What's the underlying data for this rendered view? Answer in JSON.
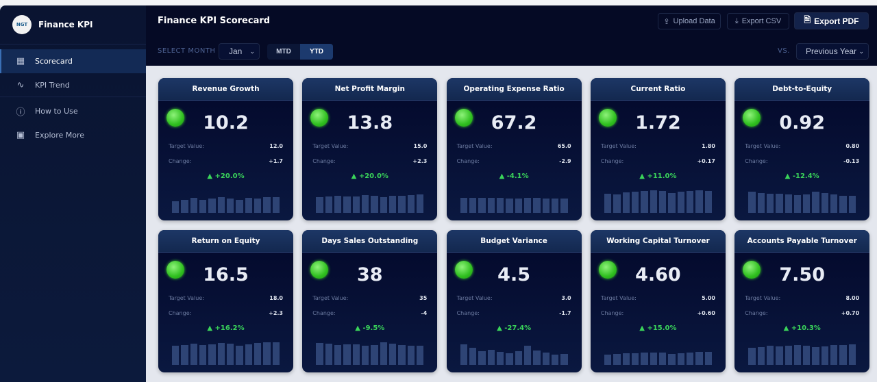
{
  "sidebar": {
    "brand": "Finance KPI",
    "logo_text": "NGT",
    "items": [
      {
        "label": "Scorecard",
        "icon": "grid-icon"
      },
      {
        "label": "KPI Trend",
        "icon": "pulse-icon"
      },
      {
        "label": "How to Use",
        "icon": "help-circle-icon"
      },
      {
        "label": "Explore More",
        "icon": "bag-icon"
      }
    ],
    "active": "Scorecard"
  },
  "header": {
    "title": "Finance KPI Scorecard",
    "upload": "Upload Data",
    "export_csv": "Export CSV",
    "export_pdf": "Export PDF",
    "select_month_label": "SELECT MONTH",
    "month": "Jan",
    "mtd": "MTD",
    "ytd": "YTD",
    "active_period": "YTD",
    "vs_label": "VS.",
    "comparison": "Previous Year"
  },
  "labels": {
    "target": "Target Value:",
    "change": "Change:"
  },
  "colors": {
    "status_good": "#3fd12a",
    "positive": "#3ad45a",
    "accent": "#1c3a6e"
  },
  "cards": [
    {
      "title": "Revenue Growth",
      "value": "10.2",
      "target": "12.0",
      "change": "+1.7",
      "pct": "▲ +20.0%",
      "spark": [
        17,
        19,
        22,
        19,
        21,
        23,
        21,
        19,
        22,
        21,
        23,
        23
      ]
    },
    {
      "title": "Net Profit Margin",
      "value": "13.8",
      "target": "15.0",
      "change": "+2.3",
      "pct": "▲ +20.0%",
      "spark": [
        23,
        24,
        25,
        24,
        24,
        26,
        25,
        23,
        25,
        25,
        26,
        27
      ]
    },
    {
      "title": "Operating Expense Ratio",
      "value": "67.2",
      "target": "65.0",
      "change": "-2.9",
      "pct": "▲ -4.1%",
      "spark": [
        22,
        22,
        22,
        22,
        22,
        21,
        21,
        22,
        22,
        21,
        21,
        21
      ]
    },
    {
      "title": "Current Ratio",
      "value": "1.72",
      "target": "1.80",
      "change": "+0.17",
      "pct": "▲ +11.0%",
      "spark": [
        28,
        27,
        30,
        31,
        32,
        33,
        32,
        29,
        31,
        32,
        33,
        32
      ]
    },
    {
      "title": "Debt-to-Equity",
      "value": "0.92",
      "target": "0.80",
      "change": "-0.13",
      "pct": "▲ -12.4%",
      "spark": [
        31,
        29,
        28,
        28,
        27,
        26,
        27,
        31,
        29,
        27,
        25,
        25
      ]
    },
    {
      "title": "Return on Equity",
      "value": "16.5",
      "target": "18.0",
      "change": "+2.3",
      "pct": "▲ +16.2%",
      "spark": [
        28,
        29,
        31,
        29,
        30,
        32,
        31,
        28,
        30,
        32,
        33,
        33
      ]
    },
    {
      "title": "Days Sales Outstanding",
      "value": "38",
      "target": "35",
      "change": "-4",
      "pct": "▲ -9.5%",
      "spark": [
        32,
        31,
        29,
        30,
        30,
        28,
        29,
        33,
        31,
        29,
        28,
        28
      ]
    },
    {
      "title": "Budget Variance",
      "value": "4.5",
      "target": "3.0",
      "change": "-1.7",
      "pct": "▲ -27.4%",
      "spark": [
        30,
        25,
        20,
        22,
        19,
        17,
        20,
        28,
        21,
        18,
        15,
        16
      ]
    },
    {
      "title": "Working Capital Turnover",
      "value": "4.60",
      "target": "5.00",
      "change": "+0.60",
      "pct": "▲ +15.0%",
      "spark": [
        15,
        16,
        17,
        17,
        18,
        18,
        18,
        16,
        17,
        18,
        19,
        19
      ]
    },
    {
      "title": "Accounts Payable Turnover",
      "value": "7.50",
      "target": "8.00",
      "change": "+0.70",
      "pct": "▲ +10.3%",
      "spark": [
        25,
        26,
        28,
        27,
        28,
        29,
        28,
        26,
        27,
        29,
        29,
        30
      ]
    }
  ]
}
